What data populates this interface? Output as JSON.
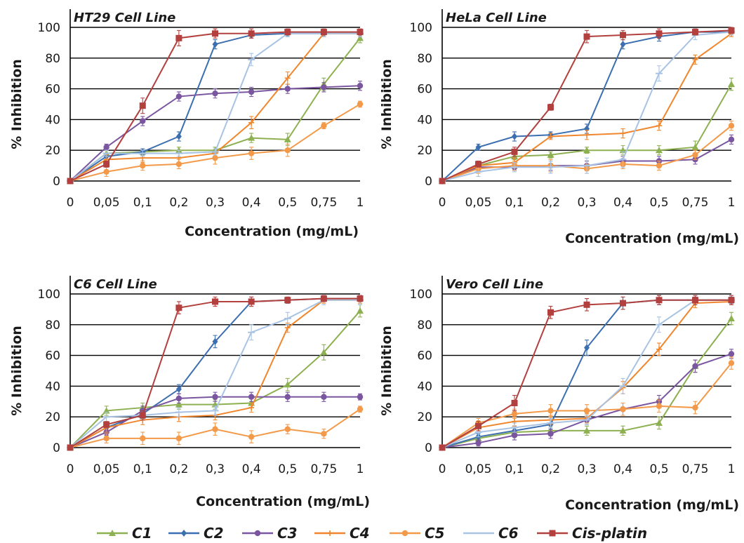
{
  "chart_data": [
    {
      "type": "line",
      "title": "HT29 Cell Line",
      "ylabel": "% Inhibition",
      "xlabel": "Concentration (mg/mL)",
      "categories": [
        "0",
        "0,05",
        "0,1",
        "0,2",
        "0,3",
        "0,4",
        "0,5",
        "0,75",
        "1"
      ],
      "ylim": [
        0,
        100
      ],
      "yticks": [
        0,
        20,
        40,
        60,
        80,
        100
      ],
      "grid": "horizontal",
      "series": [
        {
          "name": "C1",
          "values": [
            0,
            18,
            19,
            20,
            20,
            28,
            27,
            63,
            93
          ],
          "errors": [
            0,
            2,
            2,
            2,
            2,
            3,
            4,
            4,
            3
          ]
        },
        {
          "name": "C2",
          "values": [
            0,
            16,
            19,
            29,
            89,
            95,
            96,
            96,
            96
          ],
          "errors": [
            0,
            2,
            2,
            3,
            3,
            2,
            2,
            2,
            2
          ]
        },
        {
          "name": "C3",
          "values": [
            0,
            22,
            39,
            55,
            57,
            58,
            60,
            61,
            62
          ],
          "errors": [
            0,
            2,
            3,
            3,
            3,
            3,
            3,
            3,
            3
          ]
        },
        {
          "name": "C4",
          "values": [
            0,
            14,
            15,
            15,
            18,
            38,
            67,
            96,
            96
          ],
          "errors": [
            0,
            3,
            3,
            3,
            3,
            4,
            4,
            2,
            2
          ]
        },
        {
          "name": "C5",
          "values": [
            0,
            6,
            10,
            11,
            15,
            18,
            20,
            36,
            50
          ],
          "errors": [
            0,
            3,
            3,
            3,
            4,
            4,
            4,
            2,
            2
          ]
        },
        {
          "name": "C6",
          "values": [
            0,
            18,
            18,
            18,
            19,
            79,
            96,
            96,
            96
          ],
          "errors": [
            0,
            2,
            2,
            2,
            2,
            4,
            2,
            2,
            2
          ]
        },
        {
          "name": "Cis-platin",
          "values": [
            0,
            11,
            49,
            93,
            96,
            96,
            97,
            97,
            97
          ],
          "errors": [
            0,
            2,
            5,
            5,
            3,
            3,
            2,
            2,
            2
          ]
        }
      ]
    },
    {
      "type": "line",
      "title": "HeLa Cell Line",
      "ylabel": "% Inhibition",
      "xlabel": "Concentration (mg/mL)",
      "categories": [
        "0",
        "0,05",
        "0,1",
        "0,2",
        "0,3",
        "0,4",
        "0,5",
        "0,75",
        "1"
      ],
      "ylim": [
        0,
        100
      ],
      "yticks": [
        0,
        20,
        40,
        60,
        80,
        100
      ],
      "grid": "horizontal",
      "series": [
        {
          "name": "C1",
          "values": [
            0,
            10,
            16,
            17,
            20,
            20,
            20,
            22,
            63
          ],
          "errors": [
            0,
            2,
            2,
            2,
            2,
            3,
            3,
            4,
            4
          ]
        },
        {
          "name": "C2",
          "values": [
            0,
            22,
            29,
            30,
            34,
            89,
            94,
            97,
            97
          ],
          "errors": [
            0,
            2,
            3,
            2,
            3,
            3,
            3,
            2,
            2
          ]
        },
        {
          "name": "C3",
          "values": [
            0,
            9,
            9,
            10,
            10,
            13,
            13,
            14,
            27
          ],
          "errors": [
            0,
            2,
            2,
            3,
            3,
            3,
            3,
            3,
            3
          ]
        },
        {
          "name": "C4",
          "values": [
            0,
            10,
            12,
            29,
            30,
            31,
            36,
            79,
            96
          ],
          "errors": [
            0,
            3,
            3,
            2,
            3,
            3,
            3,
            3,
            2
          ]
        },
        {
          "name": "C5",
          "values": [
            0,
            8,
            10,
            10,
            8,
            11,
            10,
            17,
            36
          ],
          "errors": [
            0,
            3,
            3,
            4,
            3,
            3,
            3,
            3,
            3
          ]
        },
        {
          "name": "C6",
          "values": [
            0,
            6,
            9,
            9,
            10,
            14,
            70,
            95,
            97
          ],
          "errors": [
            0,
            3,
            3,
            4,
            5,
            5,
            5,
            3,
            2
          ]
        },
        {
          "name": "Cis-platin",
          "values": [
            0,
            11,
            19,
            48,
            94,
            95,
            96,
            97,
            98
          ],
          "errors": [
            0,
            2,
            3,
            2,
            4,
            3,
            3,
            2,
            2
          ]
        }
      ]
    },
    {
      "type": "line",
      "title": "C6 Cell Line",
      "ylabel": "% Inhibition",
      "xlabel": "Concentration (mg/mL)",
      "categories": [
        "0",
        "0,05",
        "0,1",
        "0,2",
        "0,3",
        "0,4",
        "0,5",
        "0,75",
        "1"
      ],
      "ylim": [
        0,
        100
      ],
      "yticks": [
        0,
        20,
        40,
        60,
        80,
        100
      ],
      "grid": "horizontal",
      "series": [
        {
          "name": "C1",
          "values": [
            0,
            24,
            26,
            28,
            28,
            29,
            41,
            62,
            89
          ],
          "errors": [
            0,
            3,
            3,
            3,
            3,
            3,
            4,
            5,
            4
          ]
        },
        {
          "name": "C2",
          "values": [
            0,
            13,
            22,
            38,
            69,
            95,
            96,
            97,
            97
          ],
          "errors": [
            0,
            2,
            3,
            3,
            4,
            3,
            2,
            2,
            2
          ]
        },
        {
          "name": "C3",
          "values": [
            0,
            10,
            24,
            32,
            33,
            33,
            33,
            33,
            33
          ],
          "errors": [
            0,
            2,
            3,
            3,
            3,
            3,
            3,
            3,
            2
          ]
        },
        {
          "name": "C4",
          "values": [
            0,
            13,
            18,
            20,
            21,
            26,
            78,
            96,
            96
          ],
          "errors": [
            0,
            3,
            3,
            3,
            3,
            3,
            3,
            2,
            2
          ]
        },
        {
          "name": "C5",
          "values": [
            0,
            6,
            6,
            6,
            12,
            7,
            12,
            9,
            25
          ],
          "errors": [
            0,
            3,
            4,
            4,
            4,
            4,
            3,
            3,
            2
          ]
        },
        {
          "name": "C6",
          "values": [
            0,
            20,
            21,
            23,
            24,
            75,
            84,
            96,
            96
          ],
          "errors": [
            0,
            3,
            3,
            3,
            3,
            5,
            4,
            3,
            3
          ]
        },
        {
          "name": "Cis-platin",
          "values": [
            0,
            15,
            21,
            91,
            95,
            95,
            96,
            97,
            97
          ],
          "errors": [
            0,
            2,
            3,
            4,
            3,
            3,
            2,
            2,
            2
          ]
        }
      ]
    },
    {
      "type": "line",
      "title": "Vero Cell Line",
      "ylabel": "% Inhibition",
      "xlabel": "Concentration (mg/mL)",
      "categories": [
        "0",
        "0,05",
        "0,1",
        "0,2",
        "0,3",
        "0,4",
        "0,5",
        "0,75",
        "1"
      ],
      "ylim": [
        0,
        100
      ],
      "yticks": [
        0,
        20,
        40,
        60,
        80,
        100
      ],
      "grid": "horizontal",
      "series": [
        {
          "name": "C1",
          "values": [
            0,
            6,
            10,
            11,
            11,
            11,
            16,
            53,
            84
          ],
          "errors": [
            0,
            2,
            3,
            3,
            3,
            3,
            4,
            4,
            4
          ]
        },
        {
          "name": "C2",
          "values": [
            0,
            7,
            11,
            15,
            65,
            94,
            96,
            96,
            96
          ],
          "errors": [
            0,
            2,
            3,
            3,
            5,
            4,
            3,
            2,
            2
          ]
        },
        {
          "name": "C3",
          "values": [
            0,
            3,
            8,
            9,
            18,
            25,
            30,
            53,
            61
          ],
          "errors": [
            0,
            2,
            3,
            3,
            3,
            4,
            4,
            4,
            3
          ]
        },
        {
          "name": "C4",
          "values": [
            0,
            13,
            17,
            18,
            19,
            39,
            64,
            94,
            95
          ],
          "errors": [
            0,
            3,
            3,
            3,
            3,
            4,
            4,
            3,
            2
          ]
        },
        {
          "name": "C5",
          "values": [
            0,
            16,
            22,
            24,
            24,
            25,
            27,
            26,
            55
          ],
          "errors": [
            0,
            3,
            3,
            4,
            4,
            4,
            4,
            4,
            4
          ]
        },
        {
          "name": "C6",
          "values": [
            0,
            10,
            13,
            16,
            18,
            40,
            80,
            96,
            96
          ],
          "errors": [
            0,
            3,
            3,
            3,
            3,
            5,
            5,
            3,
            3
          ]
        },
        {
          "name": "Cis-platin",
          "values": [
            0,
            14,
            29,
            88,
            93,
            94,
            96,
            96,
            96
          ],
          "errors": [
            0,
            3,
            5,
            4,
            4,
            4,
            3,
            3,
            3
          ]
        }
      ]
    }
  ],
  "legend": {
    "position": "bottom",
    "entries": [
      {
        "name": "C1",
        "color": "#8db050",
        "marker": "triangle"
      },
      {
        "name": "C2",
        "color": "#3c6fb0",
        "marker": "diamond"
      },
      {
        "name": "C3",
        "color": "#7b56a0",
        "marker": "circle"
      },
      {
        "name": "C4",
        "color": "#f0862d",
        "marker": "cross"
      },
      {
        "name": "C5",
        "color": "#f39a4a",
        "marker": "circle"
      },
      {
        "name": "C6",
        "color": "#a8c3e3",
        "marker": "dash"
      },
      {
        "name": "Cis-platin",
        "color": "#b2403e",
        "marker": "square"
      }
    ]
  }
}
